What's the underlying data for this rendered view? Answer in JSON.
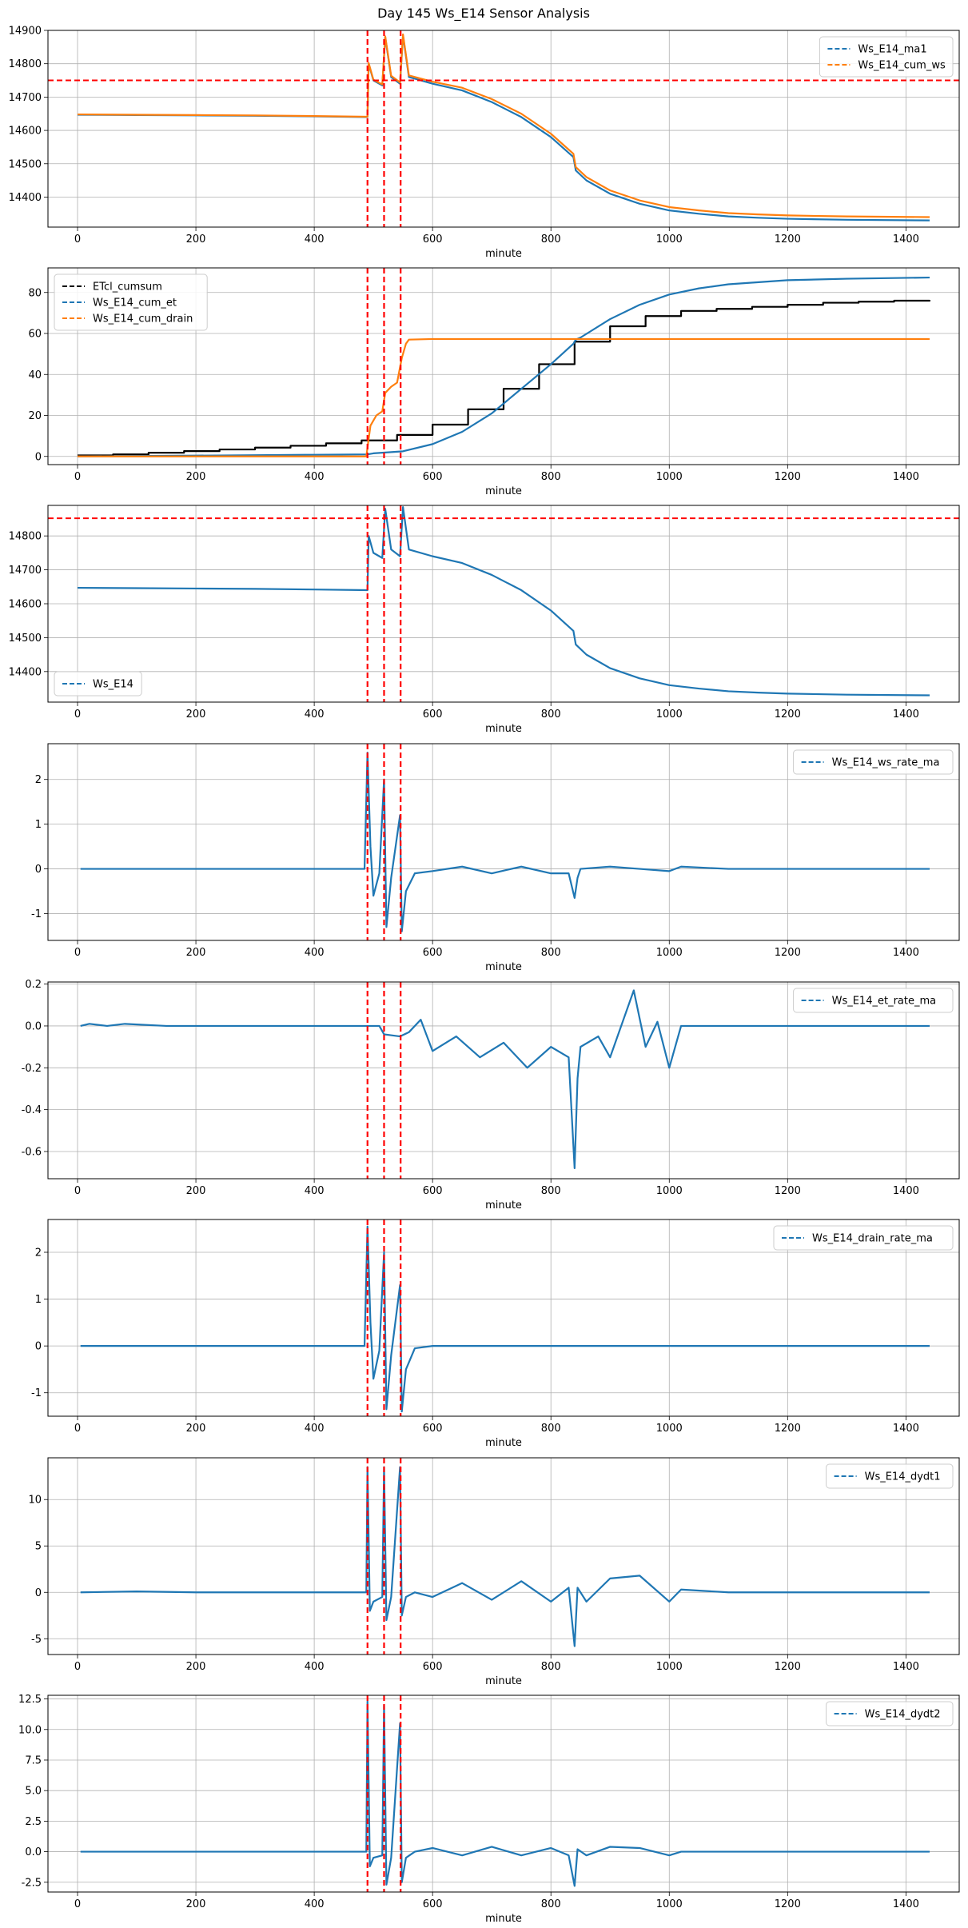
{
  "title": "Day 145 Ws_E14 Sensor Analysis",
  "colors": {
    "blue": "#1f77b4",
    "orange": "#ff7f0e",
    "black": "#000000",
    "red": "#ff0000",
    "grid": "#b0b0b0"
  },
  "chart_data": [
    {
      "type": "line",
      "xlabel": "minute",
      "xlim": [
        -50,
        1490
      ],
      "ylim": [
        14310,
        14900
      ],
      "xticks": [
        "0",
        "200",
        "400",
        "600",
        "800",
        "1000",
        "1200",
        "1400"
      ],
      "yticks": [
        "14400",
        "14500",
        "14600",
        "14700",
        "14800",
        "14900"
      ],
      "legend": "upper right",
      "series": [
        {
          "name": "Ws_E14_ma1",
          "color": "blue",
          "x": [
            0,
            100,
            200,
            300,
            400,
            490,
            492,
            500,
            515,
            520,
            530,
            545,
            550,
            560,
            600,
            650,
            700,
            750,
            800,
            838,
            842,
            860,
            900,
            950,
            1000,
            1050,
            1100,
            1150,
            1200,
            1300,
            1440
          ],
          "y": [
            14647,
            14646,
            14645,
            14644,
            14642,
            14640,
            14800,
            14750,
            14735,
            14880,
            14760,
            14740,
            14885,
            14760,
            14740,
            14720,
            14685,
            14640,
            14580,
            14520,
            14480,
            14450,
            14410,
            14380,
            14360,
            14350,
            14342,
            14338,
            14335,
            14332,
            14330
          ]
        },
        {
          "name": "Ws_E14_cum_ws",
          "color": "orange",
          "x": [
            0,
            100,
            200,
            300,
            400,
            490,
            492,
            500,
            515,
            520,
            530,
            545,
            550,
            560,
            600,
            650,
            700,
            750,
            800,
            838,
            842,
            860,
            900,
            950,
            1000,
            1050,
            1100,
            1150,
            1200,
            1300,
            1440
          ],
          "y": [
            14648,
            14647,
            14646,
            14645,
            14643,
            14641,
            14802,
            14752,
            14738,
            14882,
            14764,
            14744,
            14888,
            14765,
            14746,
            14728,
            14694,
            14650,
            14590,
            14530,
            14490,
            14460,
            14420,
            14390,
            14370,
            14360,
            14352,
            14348,
            14345,
            14342,
            14340
          ]
        }
      ],
      "hlines": [
        14750
      ],
      "vlines": [
        490,
        518,
        546
      ]
    },
    {
      "type": "line",
      "xlabel": "minute",
      "xlim": [
        -50,
        1490
      ],
      "ylim": [
        -4,
        92
      ],
      "xticks": [
        "0",
        "200",
        "400",
        "600",
        "800",
        "1000",
        "1200",
        "1400"
      ],
      "yticks": [
        "0",
        "20",
        "40",
        "60",
        "80"
      ],
      "legend": "upper left",
      "series": [
        {
          "name": "ETcl_cumsum",
          "color": "black",
          "step": true,
          "x": [
            0,
            60,
            120,
            180,
            240,
            300,
            360,
            420,
            480,
            540,
            600,
            660,
            720,
            780,
            840,
            900,
            960,
            1020,
            1080,
            1140,
            1200,
            1260,
            1320,
            1380,
            1440
          ],
          "y": [
            0.5,
            1.0,
            1.8,
            2.6,
            3.4,
            4.3,
            5.2,
            6.4,
            7.8,
            10.5,
            15.5,
            23,
            33,
            45,
            56,
            63.5,
            68.5,
            71,
            72,
            73,
            74,
            75,
            75.5,
            76,
            76.3
          ]
        },
        {
          "name": "Ws_E14_cum_et",
          "color": "blue",
          "x": [
            0,
            100,
            200,
            300,
            400,
            490,
            500,
            550,
            600,
            650,
            700,
            750,
            800,
            838,
            842,
            850,
            900,
            950,
            1000,
            1050,
            1100,
            1200,
            1300,
            1440
          ],
          "y": [
            0,
            0.2,
            0.4,
            0.6,
            0.8,
            1.0,
            1.5,
            2.5,
            6,
            12,
            21,
            33,
            45,
            55,
            57,
            58,
            67,
            74,
            79,
            82,
            84,
            86,
            86.7,
            87.3
          ]
        },
        {
          "name": "Ws_E14_cum_drain",
          "color": "orange",
          "x": [
            0,
            100,
            200,
            300,
            400,
            488,
            495,
            505,
            515,
            520,
            530,
            540,
            548,
            555,
            560,
            600,
            700,
            800,
            900,
            1000,
            1200,
            1440
          ],
          "y": [
            0,
            0,
            0,
            0,
            0,
            0,
            15,
            20,
            22,
            31,
            34,
            36,
            48,
            55,
            57,
            57.3,
            57.3,
            57.3,
            57.3,
            57.3,
            57.3,
            57.3
          ]
        }
      ],
      "hlines": [],
      "vlines": [
        490,
        518,
        546
      ]
    },
    {
      "type": "line",
      "xlabel": "minute",
      "xlim": [
        -50,
        1490
      ],
      "ylim": [
        14310,
        14890
      ],
      "xticks": [
        "0",
        "200",
        "400",
        "600",
        "800",
        "1000",
        "1200",
        "1400"
      ],
      "yticks": [
        "14400",
        "14500",
        "14600",
        "14700",
        "14800"
      ],
      "legend": "lower left",
      "series": [
        {
          "name": "Ws_E14",
          "color": "blue",
          "x": [
            0,
            100,
            200,
            300,
            400,
            490,
            492,
            500,
            515,
            520,
            530,
            545,
            550,
            560,
            600,
            650,
            700,
            750,
            800,
            838,
            842,
            860,
            900,
            950,
            1000,
            1050,
            1100,
            1150,
            1200,
            1300,
            1440
          ],
          "y": [
            14647,
            14646,
            14645,
            14644,
            14642,
            14640,
            14800,
            14750,
            14735,
            14880,
            14760,
            14740,
            14885,
            14760,
            14740,
            14720,
            14685,
            14640,
            14580,
            14520,
            14480,
            14450,
            14410,
            14380,
            14360,
            14350,
            14342,
            14338,
            14335,
            14332,
            14330
          ]
        }
      ],
      "hlines": [
        14852
      ],
      "vlines": [
        490,
        518,
        546
      ]
    },
    {
      "type": "line",
      "xlabel": "minute",
      "xlim": [
        -50,
        1490
      ],
      "ylim": [
        -1.6,
        2.8
      ],
      "xticks": [
        "0",
        "200",
        "400",
        "600",
        "800",
        "1000",
        "1200",
        "1400"
      ],
      "yticks": [
        "-1",
        "0",
        "1",
        "2"
      ],
      "legend": "upper right",
      "series": [
        {
          "name": "Ws_E14_ws_rate_ma",
          "color": "blue",
          "x": [
            5,
            100,
            200,
            300,
            400,
            485,
            490,
            495,
            500,
            510,
            518,
            522,
            530,
            545,
            548,
            555,
            570,
            600,
            650,
            700,
            750,
            800,
            830,
            840,
            845,
            850,
            900,
            950,
            1000,
            1020,
            1100,
            1200,
            1300,
            1440
          ],
          "y": [
            0,
            0,
            0,
            0,
            0,
            0,
            2.6,
            0.5,
            -0.6,
            -0.1,
            2.0,
            -1.3,
            -0.2,
            1.2,
            -1.4,
            -0.5,
            -0.1,
            -0.05,
            0.05,
            -0.1,
            0.05,
            -0.1,
            -0.1,
            -0.65,
            -0.2,
            0,
            0.05,
            0,
            -0.05,
            0.05,
            0,
            0,
            0,
            0
          ]
        }
      ],
      "hlines": [],
      "vlines": [
        490,
        518,
        546
      ]
    },
    {
      "type": "line",
      "xlabel": "minute",
      "xlim": [
        -50,
        1490
      ],
      "ylim": [
        -0.73,
        0.21
      ],
      "xticks": [
        "0",
        "200",
        "400",
        "600",
        "800",
        "1000",
        "1200",
        "1400"
      ],
      "yticks": [
        "-0.6",
        "-0.4",
        "-0.2",
        "0.0",
        "0.2"
      ],
      "legend": "upper right",
      "series": [
        {
          "name": "Ws_E14_et_rate_ma",
          "color": "blue",
          "x": [
            5,
            20,
            50,
            80,
            150,
            200,
            300,
            400,
            490,
            510,
            518,
            545,
            560,
            580,
            600,
            640,
            680,
            720,
            760,
            800,
            830,
            840,
            845,
            850,
            880,
            900,
            940,
            960,
            980,
            1000,
            1020,
            1040,
            1100,
            1200,
            1300,
            1440
          ],
          "y": [
            0,
            0.01,
            0,
            0.01,
            0,
            0,
            0,
            0,
            0,
            0,
            -0.04,
            -0.05,
            -0.03,
            0.03,
            -0.12,
            -0.05,
            -0.15,
            -0.08,
            -0.2,
            -0.1,
            -0.15,
            -0.68,
            -0.25,
            -0.1,
            -0.05,
            -0.15,
            0.17,
            -0.1,
            0.02,
            -0.2,
            0,
            0,
            0,
            0,
            0,
            0
          ]
        }
      ],
      "hlines": [],
      "vlines": [
        490,
        518,
        546
      ]
    },
    {
      "type": "line",
      "xlabel": "minute",
      "xlim": [
        -50,
        1490
      ],
      "ylim": [
        -1.5,
        2.7
      ],
      "xticks": [
        "0",
        "200",
        "400",
        "600",
        "800",
        "1000",
        "1200",
        "1400"
      ],
      "yticks": [
        "-1",
        "0",
        "1",
        "2"
      ],
      "legend": "upper right",
      "series": [
        {
          "name": "Ws_E14_drain_rate_ma",
          "color": "blue",
          "x": [
            5,
            100,
            200,
            300,
            400,
            485,
            490,
            495,
            500,
            510,
            518,
            522,
            530,
            545,
            548,
            555,
            570,
            600,
            800,
            1000,
            1200,
            1440
          ],
          "y": [
            0,
            0,
            0,
            0,
            0,
            0,
            2.55,
            0.5,
            -0.7,
            -0.1,
            2.0,
            -1.35,
            -0.2,
            1.3,
            -1.4,
            -0.5,
            -0.05,
            0,
            0,
            0,
            0,
            0
          ]
        }
      ],
      "hlines": [],
      "vlines": [
        490,
        518,
        546
      ]
    },
    {
      "type": "line",
      "xlabel": "minute",
      "xlim": [
        -50,
        1490
      ],
      "ylim": [
        -6.7,
        14.5
      ],
      "xticks": [
        "0",
        "200",
        "400",
        "600",
        "800",
        "1000",
        "1200",
        "1400"
      ],
      "yticks": [
        "-5",
        "0",
        "5",
        "10"
      ],
      "legend": "upper right",
      "series": [
        {
          "name": "Ws_E14_dydt1",
          "color": "blue",
          "x": [
            5,
            100,
            200,
            300,
            400,
            488,
            490,
            494,
            500,
            515,
            518,
            522,
            530,
            545,
            548,
            555,
            570,
            600,
            650,
            700,
            750,
            800,
            830,
            840,
            845,
            860,
            900,
            950,
            1000,
            1020,
            1100,
            1200,
            1300,
            1440
          ],
          "y": [
            0,
            0.1,
            0,
            0,
            0,
            0,
            13.5,
            -2,
            -1,
            -0.5,
            13.5,
            -3,
            -0.5,
            13.5,
            -2.5,
            -0.5,
            0,
            -0.5,
            1,
            -0.8,
            1.2,
            -1,
            0.5,
            -5.8,
            0.5,
            -1,
            1.5,
            1.8,
            -1,
            0.3,
            0,
            0,
            0,
            0
          ]
        }
      ],
      "hlines": [],
      "vlines": [
        490,
        518,
        546
      ]
    },
    {
      "type": "line",
      "xlabel": "minute",
      "xlim": [
        -50,
        1490
      ],
      "ylim": [
        -3.3,
        12.8
      ],
      "xticks": [
        "0",
        "200",
        "400",
        "600",
        "800",
        "1000",
        "1200",
        "1400"
      ],
      "yticks": [
        "-2.5",
        "0.0",
        "2.5",
        "5.0",
        "7.5",
        "10.0",
        "12.5"
      ],
      "legend": "upper right",
      "series": [
        {
          "name": "Ws_E14_dydt2",
          "color": "blue",
          "x": [
            5,
            100,
            200,
            300,
            400,
            488,
            490,
            494,
            500,
            515,
            518,
            522,
            530,
            545,
            548,
            555,
            570,
            600,
            650,
            700,
            750,
            800,
            830,
            840,
            845,
            860,
            900,
            950,
            1000,
            1020,
            1100,
            1200,
            1300,
            1440
          ],
          "y": [
            0,
            0,
            0,
            0,
            0,
            0,
            12.3,
            -1.2,
            -0.5,
            -0.3,
            12.0,
            -2.7,
            -0.5,
            10.5,
            -2.5,
            -0.5,
            0,
            0.3,
            -0.3,
            0.4,
            -0.3,
            0.3,
            -0.3,
            -2.8,
            0.2,
            -0.3,
            0.4,
            0.3,
            -0.3,
            0,
            0,
            0,
            0,
            0
          ]
        }
      ],
      "hlines": [],
      "vlines": [
        490,
        518,
        546
      ]
    }
  ]
}
